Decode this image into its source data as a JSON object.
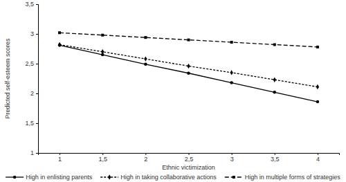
{
  "chart_data": {
    "type": "line",
    "x_label": "Ethnic victimization",
    "y_label": "Predicted self-esteem scores",
    "x": [
      1,
      1.5,
      2,
      2.5,
      3,
      3.5,
      4
    ],
    "xlim": [
      0.75,
      4.25
    ],
    "xticks": [
      1,
      {
        "value": 1.5,
        "label": "1,5"
      },
      2,
      {
        "value": 2.5,
        "label": "2,5"
      },
      3,
      {
        "value": 3.5,
        "label": "3,5"
      },
      4
    ],
    "ylim": [
      1,
      3.5
    ],
    "yticks": [
      1,
      {
        "value": 1.5,
        "label": "1,5"
      },
      2,
      {
        "value": 2.5,
        "label": "2,5"
      },
      3,
      {
        "value": 3.5,
        "label": "3,5"
      }
    ],
    "grid": false,
    "legend": "bottom",
    "series": [
      {
        "name": "High in enlisting parents",
        "color": "#000000",
        "marker": "circle",
        "line_style": "solid",
        "values": [
          2.81,
          2.65,
          2.49,
          2.34,
          2.18,
          2.02,
          1.86
        ]
      },
      {
        "name": "High in taking collaborative actions",
        "color": "#000000",
        "marker": "diamond",
        "line_style": "short_dash",
        "values": [
          2.82,
          2.7,
          2.58,
          2.46,
          2.35,
          2.23,
          2.11
        ]
      },
      {
        "name": "High in multiple forms of strategies",
        "color": "#000000",
        "marker": "square",
        "line_style": "dashed",
        "values": [
          3.02,
          2.98,
          2.94,
          2.9,
          2.86,
          2.82,
          2.78
        ]
      }
    ]
  }
}
